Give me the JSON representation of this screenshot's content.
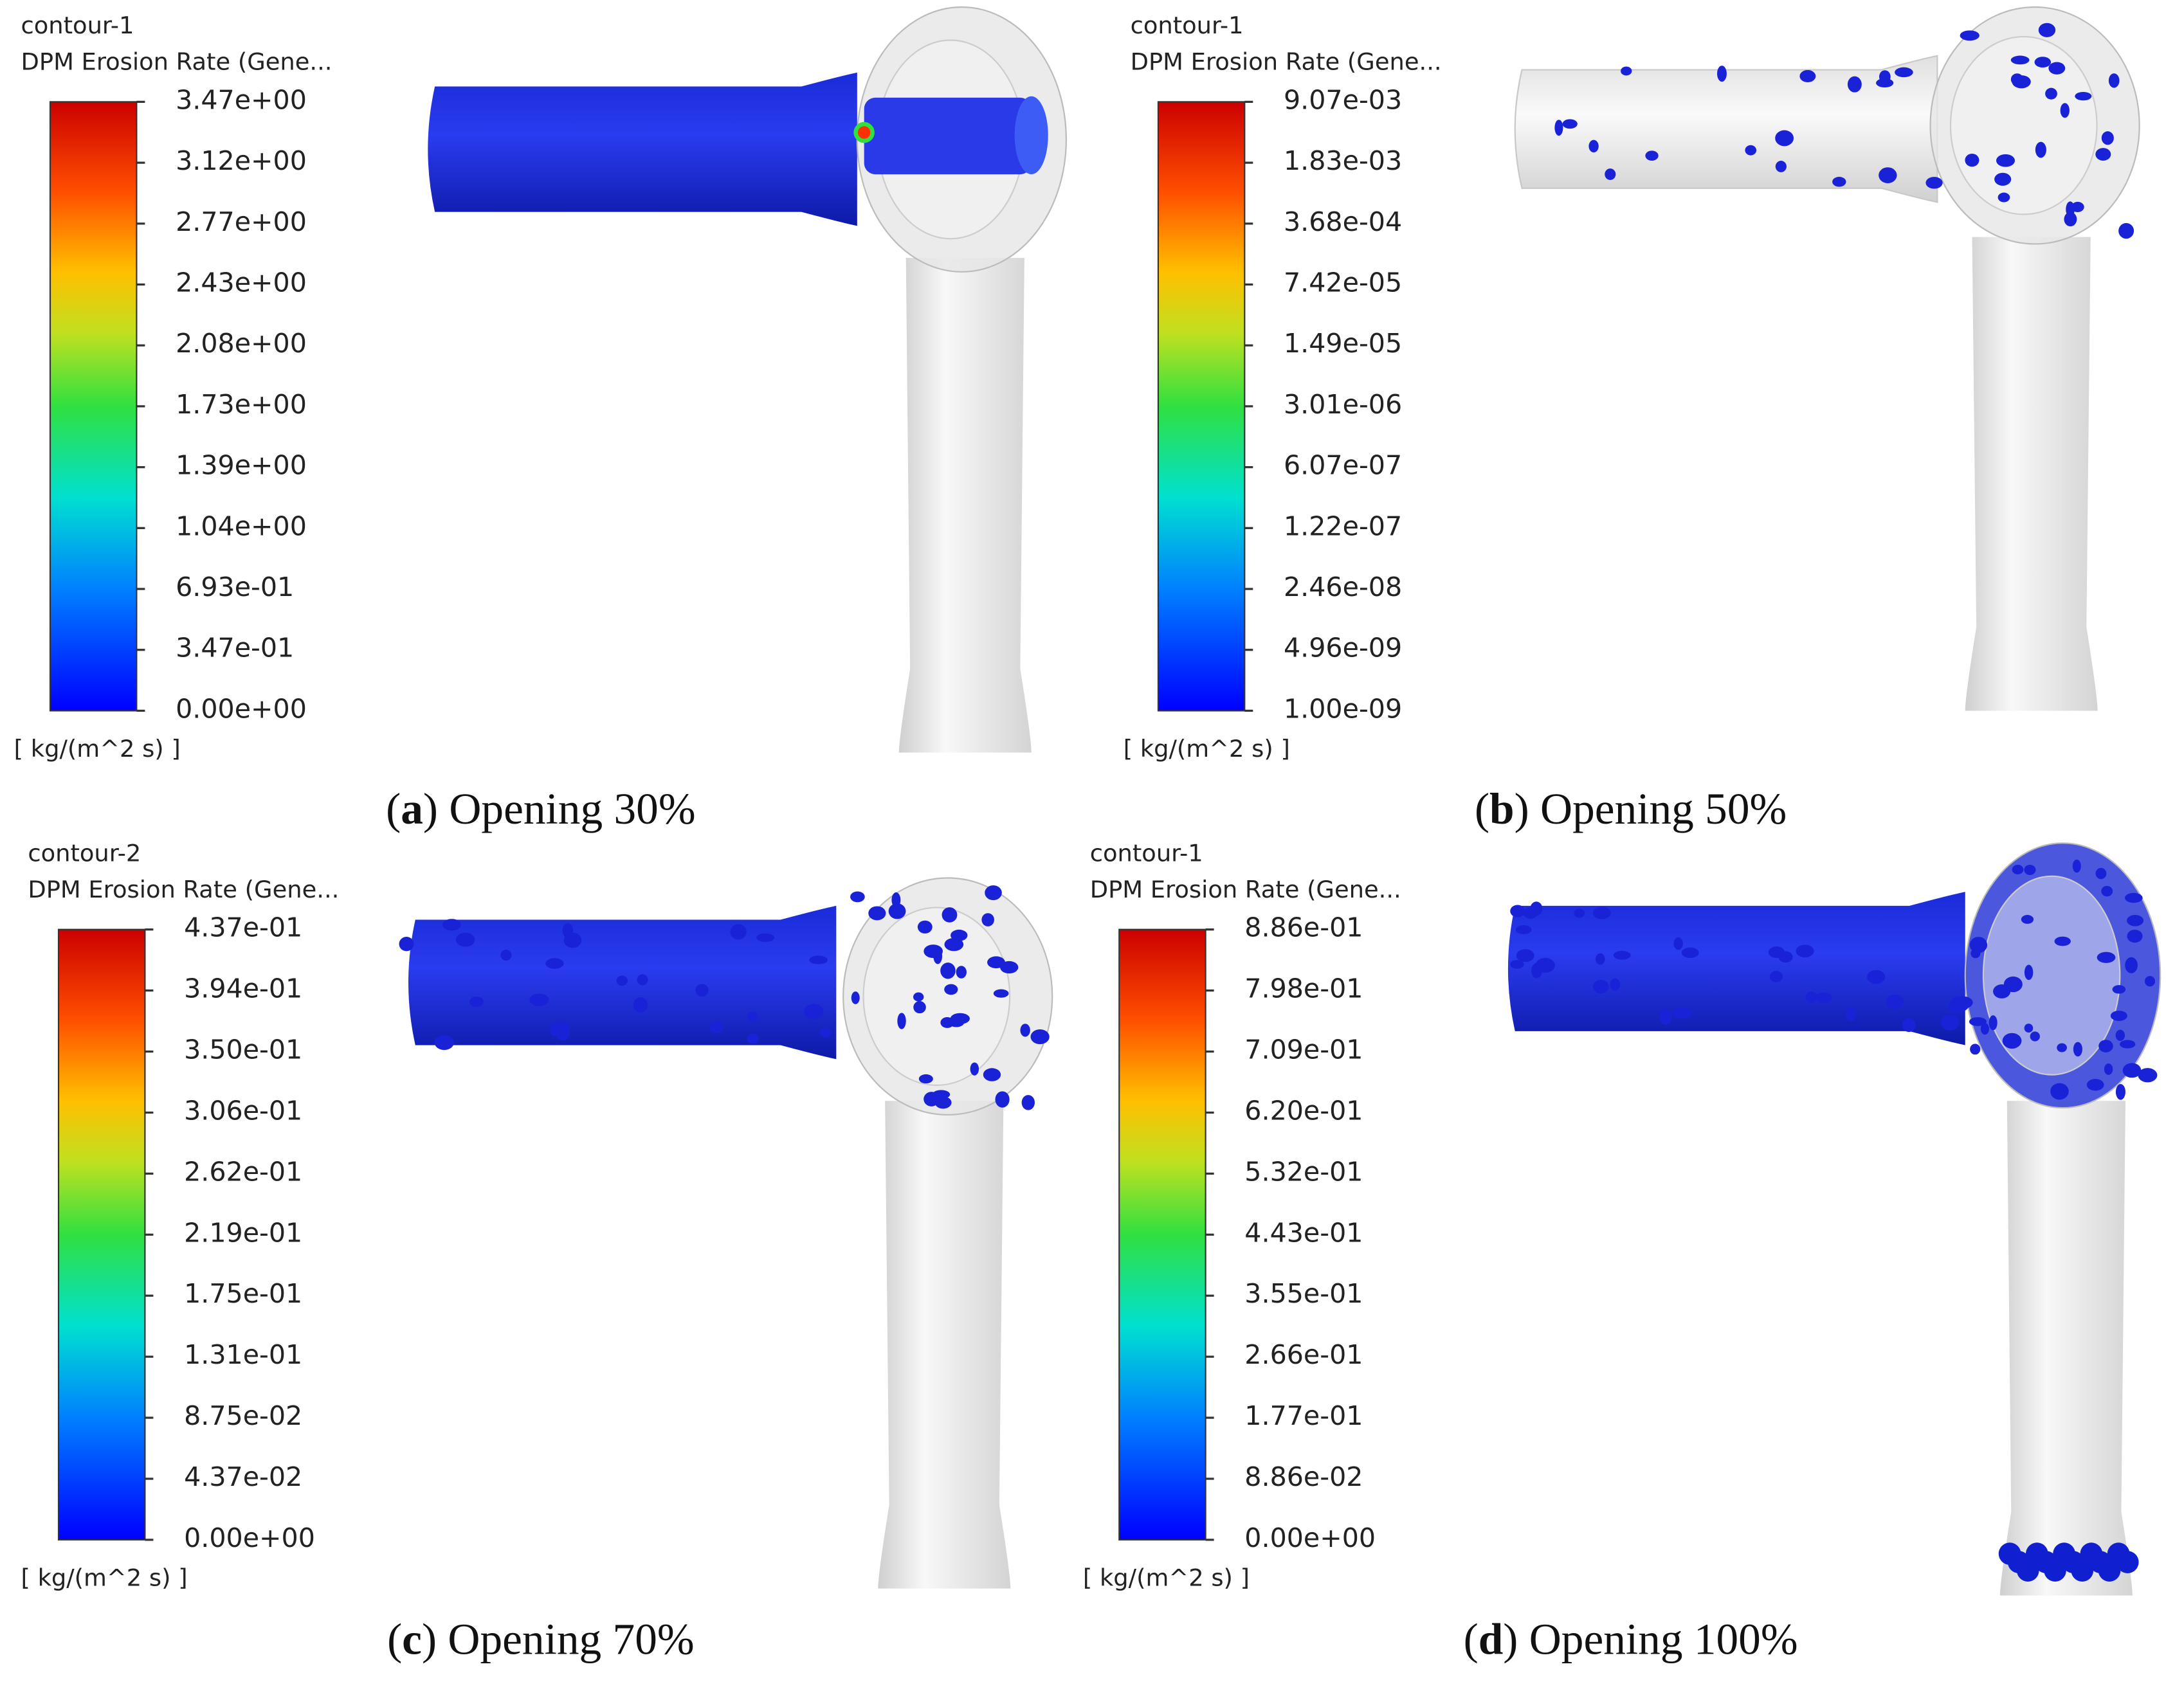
{
  "panels": [
    {
      "contour": "contour-1",
      "variable": "DPM Erosion Rate (Gene...",
      "ticks": [
        "3.47e+00",
        "3.12e+00",
        "2.77e+00",
        "2.43e+00",
        "2.08e+00",
        "1.73e+00",
        "1.39e+00",
        "1.04e+00",
        "6.93e-01",
        "3.47e-01",
        "0.00e+00"
      ],
      "units": "[ kg/(m^2 s) ]",
      "caption": [
        "(",
        "a",
        ") Opening 30%"
      ]
    },
    {
      "contour": "contour-1",
      "variable": "DPM Erosion Rate (Gene...",
      "ticks": [
        "9.07e-03",
        "1.83e-03",
        "3.68e-04",
        "7.42e-05",
        "1.49e-05",
        "3.01e-06",
        "6.07e-07",
        "1.22e-07",
        "2.46e-08",
        "4.96e-09",
        "1.00e-09"
      ],
      "units": "[ kg/(m^2 s) ]",
      "caption": [
        "(",
        "b",
        ") Opening 50%"
      ]
    },
    {
      "contour": "contour-2",
      "variable": "DPM Erosion Rate (Gene...",
      "ticks": [
        "4.37e-01",
        "3.94e-01",
        "3.50e-01",
        "3.06e-01",
        "2.62e-01",
        "2.19e-01",
        "1.75e-01",
        "1.31e-01",
        "8.75e-02",
        "4.37e-02",
        "0.00e+00"
      ],
      "units": "[ kg/(m^2 s) ]",
      "caption": [
        "(",
        "c",
        ") Opening 70%"
      ]
    },
    {
      "contour": "contour-1",
      "variable": "DPM Erosion Rate (Gene...",
      "ticks": [
        "8.86e-01",
        "7.98e-01",
        "7.09e-01",
        "6.20e-01",
        "5.32e-01",
        "4.43e-01",
        "3.55e-01",
        "2.66e-01",
        "1.77e-01",
        "8.86e-02",
        "0.00e+00"
      ],
      "units": "[ kg/(m^2 s) ]",
      "caption": [
        "(",
        "d",
        ") Opening 100%"
      ]
    }
  ]
}
